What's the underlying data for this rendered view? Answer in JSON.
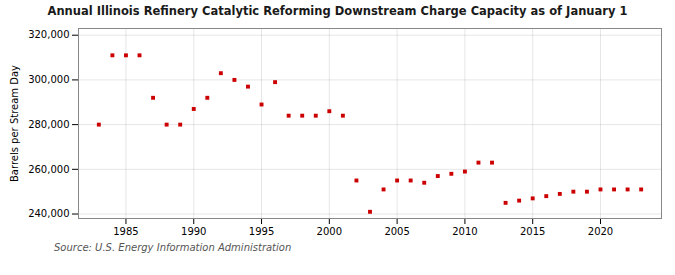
{
  "chart_data": {
    "type": "scatter",
    "title": "Annual Illinois Refinery Catalytic Reforming Downstream Charge Capacity as of January 1",
    "ylabel": "Barrels per Stream Day",
    "source": "Source: U.S. Energy Information Administration",
    "x": [
      1983,
      1984,
      1985,
      1986,
      1987,
      1988,
      1989,
      1990,
      1991,
      1992,
      1993,
      1994,
      1995,
      1996,
      1997,
      1998,
      1999,
      2000,
      2001,
      2002,
      2003,
      2004,
      2005,
      2006,
      2007,
      2008,
      2009,
      2010,
      2011,
      2012,
      2013,
      2014,
      2015,
      2016,
      2017,
      2018,
      2019,
      2020,
      2021,
      2022,
      2023
    ],
    "values": [
      280000,
      311000,
      311000,
      311000,
      292000,
      280000,
      280000,
      287000,
      292000,
      303000,
      300000,
      297000,
      289000,
      299000,
      284000,
      284000,
      284000,
      286000,
      284000,
      255000,
      241000,
      251000,
      255000,
      255000,
      254000,
      257000,
      258000,
      259000,
      263000,
      263000,
      245000,
      246000,
      247000,
      248000,
      249000,
      250000,
      250000,
      251000,
      251000,
      251000,
      251000
    ],
    "color": "#cc0000",
    "marker": "square",
    "xlim": [
      1981.5,
      2024.5
    ],
    "xticks": [
      1985,
      1990,
      1995,
      2000,
      2005,
      2010,
      2015,
      2020
    ],
    "ylim": [
      238000,
      323000
    ],
    "yticks": [
      {
        "value": 240000,
        "label": "240,000"
      },
      {
        "value": 260000,
        "label": "260,000"
      },
      {
        "value": 280000,
        "label": "280,000"
      },
      {
        "value": 300000,
        "label": "300,000"
      },
      {
        "value": 320000,
        "label": "320,000"
      }
    ],
    "grid": true
  }
}
